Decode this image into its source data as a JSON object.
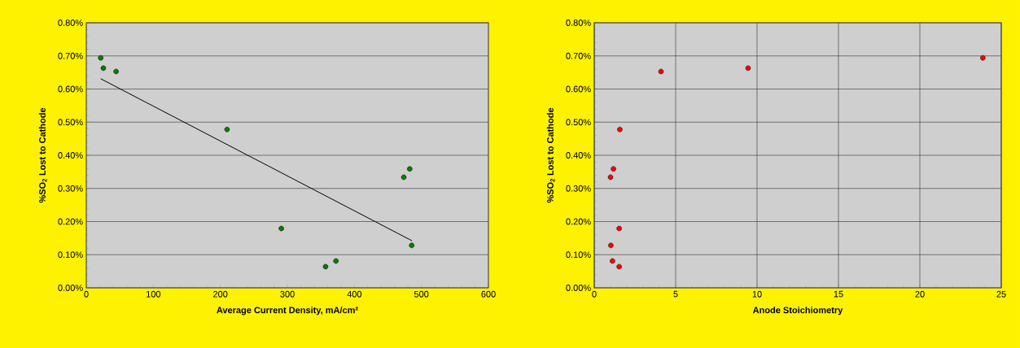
{
  "chart_data": [
    {
      "type": "scatter",
      "xlabel": "Average Current Density, mA/cm²",
      "ylabel": "%SO$_{2}$ Lost to Cathode",
      "xlim": [
        0,
        600
      ],
      "ylim": [
        0,
        0.8
      ],
      "xticks": [
        0,
        100,
        200,
        300,
        400,
        500,
        600
      ],
      "yticks": [
        {
          "value": 0,
          "label": "0.00%"
        },
        {
          "value": 0.1,
          "label": "0.10%"
        },
        {
          "value": 0.2,
          "label": "0.20%"
        },
        {
          "value": 0.3,
          "label": "0.30%"
        },
        {
          "value": 0.4,
          "label": "0.40%"
        },
        {
          "value": 0.5,
          "label": "0.50%"
        },
        {
          "value": 0.6,
          "label": "0.60%"
        },
        {
          "value": 0.7,
          "label": "0.70%"
        },
        {
          "value": 0.8,
          "label": "0.80%"
        }
      ],
      "grid": "y",
      "series": [
        {
          "color": "#008000",
          "marker": "circle",
          "x": [
            21.5,
            25.5,
            44.5,
            210,
            291,
            357,
            372.5,
            473.7,
            482.6,
            485.5
          ],
          "values": [
            0.694,
            0.663,
            0.653,
            0.478,
            0.179,
            0.064,
            0.081,
            0.334,
            0.359,
            0.128
          ]
        },
        {
          "type": "line",
          "color": "#000000",
          "marker": "none",
          "x": [
            21.5,
            486
          ],
          "values": [
            0.631,
            0.142
          ]
        }
      ]
    },
    {
      "type": "scatter",
      "xlabel": "Anode Stoichiometry",
      "ylabel": "%SO$_{2}$ Lost to Cathode",
      "xlim": [
        0,
        25
      ],
      "ylim": [
        0,
        0.8
      ],
      "xticks": [
        0,
        5,
        10,
        15,
        20,
        25
      ],
      "yticks": [
        {
          "value": 0,
          "label": "0.00%"
        },
        {
          "value": 0.1,
          "label": "0.10%"
        },
        {
          "value": 0.2,
          "label": "0.20%"
        },
        {
          "value": 0.3,
          "label": "0.30%"
        },
        {
          "value": 0.4,
          "label": "0.40%"
        },
        {
          "value": 0.5,
          "label": "0.50%"
        },
        {
          "value": 0.6,
          "label": "0.60%"
        },
        {
          "value": 0.7,
          "label": "0.70%"
        },
        {
          "value": 0.8,
          "label": "0.80%"
        }
      ],
      "grid": true,
      "series": [
        {
          "color": "#ff0000",
          "marker": "circle",
          "x": [
            23.87,
            9.45,
            4.1,
            1.57,
            1.18,
            1.0,
            1.53,
            1.02,
            1.12,
            1.53
          ],
          "values": [
            0.694,
            0.663,
            0.653,
            0.478,
            0.359,
            0.334,
            0.179,
            0.128,
            0.081,
            0.064
          ]
        }
      ]
    }
  ]
}
